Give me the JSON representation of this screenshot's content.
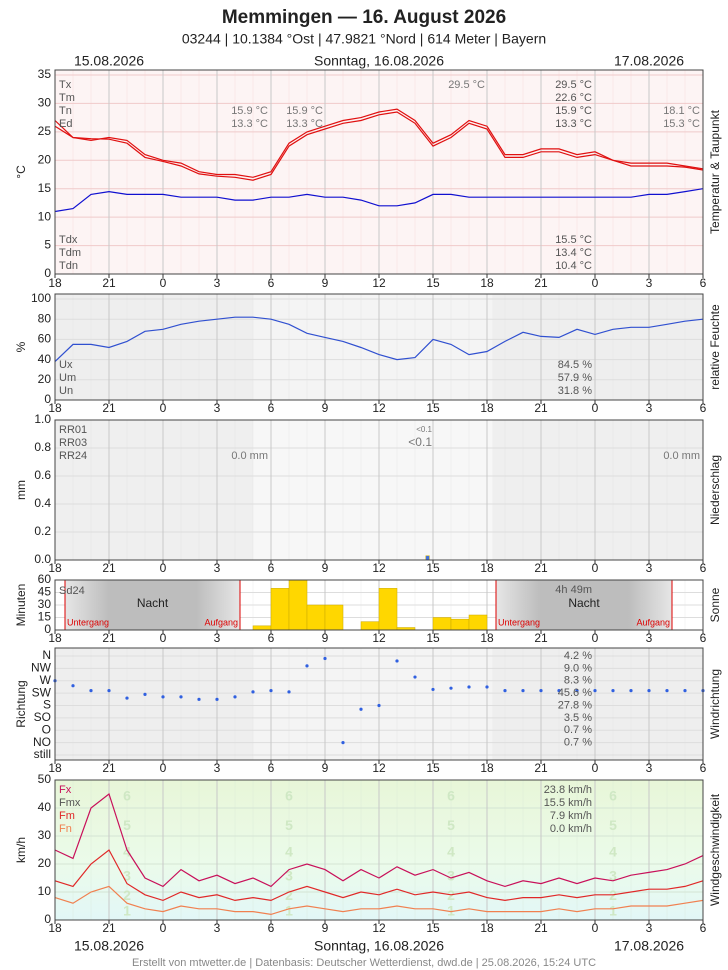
{
  "header": {
    "title": "Memmingen  —  16. August 2026",
    "subtitle": "03244  |  10.1384 °Ost  |  47.9821 °Nord  |  614 Meter  |  Bayern",
    "dates": [
      "15.08.2026",
      "Sonntag, 16.08.2026",
      "17.08.2026"
    ],
    "footer": "Erstellt von mtwetter.de | Datenbasis: Deutscher Wetterdienst, dwd.de | 25.08.2026, 15:24 UTC"
  },
  "chart_data": [
    {
      "type": "line",
      "y_label": "°C",
      "side_label": "Temperatur & Taupunkt",
      "xlim": [
        0,
        36
      ],
      "ylim": [
        0,
        35
      ],
      "yticks": [
        0,
        5,
        10,
        15,
        20,
        25,
        30,
        35
      ],
      "xticks": [
        {
          "value": 0,
          "label": "18"
        },
        {
          "value": 3,
          "label": "21"
        },
        {
          "value": 6,
          "label": "0"
        },
        {
          "value": 9,
          "label": "3"
        },
        {
          "value": 12,
          "label": "6"
        },
        {
          "value": 15,
          "label": "9"
        },
        {
          "value": 18,
          "label": "12"
        },
        {
          "value": 21,
          "label": "15"
        },
        {
          "value": 24,
          "label": "18"
        },
        {
          "value": 27,
          "label": "21"
        },
        {
          "value": 30,
          "label": "0"
        },
        {
          "value": 33,
          "label": "3"
        },
        {
          "value": 36,
          "label": "6"
        }
      ],
      "x": [
        0,
        1,
        2,
        3,
        4,
        5,
        6,
        7,
        8,
        9,
        10,
        11,
        12,
        13,
        14,
        15,
        16,
        17,
        18,
        19,
        20,
        21,
        22,
        23,
        24,
        25,
        26,
        27,
        28,
        29,
        30,
        31,
        32,
        33,
        34,
        35,
        36
      ],
      "series": [
        {
          "color": "#e01010",
          "values": [
            26,
            24,
            23.5,
            24,
            23.5,
            21,
            20,
            19.5,
            18,
            17.5,
            17.5,
            17,
            18,
            23,
            25,
            26,
            27,
            27.5,
            28.5,
            29,
            27,
            23,
            24.5,
            27,
            26,
            21,
            21,
            22,
            22,
            21,
            21.5,
            20,
            19.5,
            19.5,
            19.5,
            19,
            18.5
          ]
        },
        {
          "color": "#e01010",
          "values": [
            27,
            24,
            23.8,
            23.7,
            23,
            20.5,
            19.8,
            19,
            17.6,
            17.2,
            17,
            16.5,
            17.5,
            22.5,
            24.5,
            25.5,
            26.5,
            27,
            28,
            28.5,
            26.5,
            22.5,
            24,
            26.5,
            25.5,
            20.5,
            20.5,
            21.5,
            21.5,
            20.5,
            21,
            20,
            19,
            19,
            19,
            18.8,
            18.3
          ]
        },
        {
          "color": "#1010d0",
          "values": [
            11,
            11.5,
            14,
            14.5,
            14,
            14,
            14,
            13.5,
            13.5,
            13.5,
            13,
            13,
            13.5,
            13.5,
            14,
            13.5,
            13.5,
            13,
            12,
            12,
            12.5,
            14,
            14,
            13.5,
            13.5,
            13.5,
            13.5,
            13.5,
            13.5,
            13.5,
            13.5,
            13.5,
            13.5,
            14,
            14,
            14.5,
            15
          ]
        }
      ],
      "stats": [
        {
          "label": "Tx",
          "value": "29.5 °C"
        },
        {
          "label": "Tm",
          "value": "22.6 °C"
        },
        {
          "label": "Tn",
          "value": "15.9 °C"
        },
        {
          "label": "Ed",
          "value": "13.3 °C"
        }
      ],
      "dewpoint_stats": [
        {
          "label": "Tdx",
          "value": "15.5 °C"
        },
        {
          "label": "Tdm",
          "value": "13.4 °C"
        },
        {
          "label": "Tdn",
          "value": "10.4 °C"
        }
      ],
      "annotations": [
        "29.5 °C",
        "15.9 °C",
        "13.3 °C",
        "15.9 °C",
        "13.3 °C",
        "18.1 °C",
        "15.3 °C"
      ]
    },
    {
      "type": "line",
      "y_label": "%",
      "side_label": "relative Feuchte",
      "xlim": [
        0,
        36
      ],
      "ylim": [
        0,
        100
      ],
      "yticks": [
        0,
        20,
        40,
        60,
        80,
        100
      ],
      "xticks": [
        {
          "value": 0,
          "label": "18"
        },
        {
          "value": 3,
          "label": "21"
        },
        {
          "value": 6,
          "label": "0"
        },
        {
          "value": 9,
          "label": "3"
        },
        {
          "value": 12,
          "label": "6"
        },
        {
          "value": 15,
          "label": "9"
        },
        {
          "value": 18,
          "label": "12"
        },
        {
          "value": 21,
          "label": "15"
        },
        {
          "value": 24,
          "label": "18"
        },
        {
          "value": 27,
          "label": "21"
        },
        {
          "value": 30,
          "label": "0"
        },
        {
          "value": 33,
          "label": "3"
        },
        {
          "value": 36,
          "label": "6"
        }
      ],
      "x": [
        0,
        1,
        2,
        3,
        4,
        5,
        6,
        7,
        8,
        9,
        10,
        11,
        12,
        13,
        14,
        15,
        16,
        17,
        18,
        19,
        20,
        21,
        22,
        23,
        24,
        25,
        26,
        27,
        28,
        29,
        30,
        31,
        32,
        33,
        34,
        35,
        36
      ],
      "series": [
        {
          "color": "#3050d0",
          "values": [
            38,
            55,
            55,
            52,
            58,
            68,
            70,
            75,
            78,
            80,
            82,
            82,
            80,
            75,
            66,
            62,
            58,
            52,
            45,
            40,
            42,
            60,
            55,
            45,
            48,
            58,
            67,
            63,
            62,
            70,
            65,
            70,
            72,
            72,
            75,
            78,
            80
          ]
        }
      ],
      "stats": [
        {
          "label": "Ux",
          "value": "84.5 %"
        },
        {
          "label": "Um",
          "value": "57.9 %"
        },
        {
          "label": "Un",
          "value": "31.8 %"
        }
      ]
    },
    {
      "type": "bar",
      "y_label": "mm",
      "side_label": "Niederschlag",
      "xlim": [
        0,
        36
      ],
      "ylim": [
        0,
        1
      ],
      "yticks": [
        {
          "value": 0,
          "label": "0.0"
        },
        {
          "value": 0.2,
          "label": "0.2"
        },
        {
          "value": 0.4,
          "label": "0.4"
        },
        {
          "value": 0.6,
          "label": "0.6"
        },
        {
          "value": 0.8,
          "label": "0.8"
        },
        {
          "value": 1,
          "label": "1.0"
        }
      ],
      "xticks": [
        {
          "value": 0,
          "label": "18"
        },
        {
          "value": 3,
          "label": "21"
        },
        {
          "value": 6,
          "label": "0"
        },
        {
          "value": 9,
          "label": "3"
        },
        {
          "value": 12,
          "label": "6"
        },
        {
          "value": 15,
          "label": "9"
        },
        {
          "value": 18,
          "label": "12"
        },
        {
          "value": 21,
          "label": "15"
        },
        {
          "value": 24,
          "label": "18"
        },
        {
          "value": 27,
          "label": "21"
        },
        {
          "value": 30,
          "label": "0"
        },
        {
          "value": 33,
          "label": "3"
        },
        {
          "value": 36,
          "label": "6"
        }
      ],
      "x": [
        20.6
      ],
      "bar_width": 0.2,
      "color": "#4070e0",
      "values": [
        0.03
      ],
      "stats": [
        {
          "label": "RR01"
        },
        {
          "label": "RR03"
        },
        {
          "label": "RR24"
        }
      ],
      "annotations": [
        "<0.1",
        "<0.1",
        "0.0 mm",
        "0.0 mm"
      ]
    },
    {
      "type": "bar",
      "y_label": "Minuten",
      "side_label": "Sonne",
      "xlim": [
        0,
        36
      ],
      "ylim": [
        0,
        60
      ],
      "yticks": [
        0,
        15,
        30,
        45,
        60
      ],
      "xticks": [
        {
          "value": 0,
          "label": "18"
        },
        {
          "value": 3,
          "label": "21"
        },
        {
          "value": 6,
          "label": "0"
        },
        {
          "value": 9,
          "label": "3"
        },
        {
          "value": 12,
          "label": "6"
        },
        {
          "value": 15,
          "label": "9"
        },
        {
          "value": 18,
          "label": "12"
        },
        {
          "value": 21,
          "label": "15"
        },
        {
          "value": 24,
          "label": "18"
        },
        {
          "value": 27,
          "label": "21"
        },
        {
          "value": 30,
          "label": "0"
        },
        {
          "value": 33,
          "label": "3"
        },
        {
          "value": 36,
          "label": "6"
        }
      ],
      "x": [
        11,
        12,
        13,
        14,
        15,
        16,
        17,
        18,
        19,
        20,
        21,
        22,
        23
      ],
      "bar_width": 1,
      "color": "#ffd700",
      "values": [
        5,
        50,
        60,
        30,
        30,
        0,
        10,
        50,
        3,
        0,
        15,
        13,
        18
      ],
      "sd24": {
        "label": "Sd24",
        "value": "4h 49m"
      },
      "night": {
        "label": "Nacht",
        "sunset": "Untergang",
        "sunrise": "Aufgang"
      }
    },
    {
      "type": "scatter",
      "y_label": "Richtung",
      "side_label": "Windrichtung",
      "xlim": [
        0,
        36
      ],
      "ylim": [
        0,
        8
      ],
      "yticks": [
        {
          "value": 8,
          "label": "N"
        },
        {
          "value": 7,
          "label": "NW"
        },
        {
          "value": 6,
          "label": "W"
        },
        {
          "value": 5,
          "label": "SW"
        },
        {
          "value": 4,
          "label": "S"
        },
        {
          "value": 3,
          "label": "SO"
        },
        {
          "value": 2,
          "label": "O"
        },
        {
          "value": 1,
          "label": "NO"
        },
        {
          "value": 0,
          "label": "still"
        }
      ],
      "xticks": [
        {
          "value": 0,
          "label": "18"
        },
        {
          "value": 3,
          "label": "21"
        },
        {
          "value": 6,
          "label": "0"
        },
        {
          "value": 9,
          "label": "3"
        },
        {
          "value": 12,
          "label": "6"
        },
        {
          "value": 15,
          "label": "9"
        },
        {
          "value": 18,
          "label": "12"
        },
        {
          "value": 21,
          "label": "15"
        },
        {
          "value": 24,
          "label": "18"
        },
        {
          "value": 27,
          "label": "21"
        },
        {
          "value": 30,
          "label": "0"
        },
        {
          "value": 33,
          "label": "3"
        },
        {
          "value": 36,
          "label": "6"
        }
      ],
      "x": [
        0,
        1,
        2,
        3,
        4,
        5,
        6,
        7,
        8,
        9,
        10,
        11,
        12,
        13,
        14,
        15,
        16,
        17,
        18,
        19,
        20,
        21,
        22,
        23,
        24,
        25,
        26,
        27,
        28,
        29,
        30,
        31,
        32,
        33,
        34,
        35,
        36
      ],
      "color": "#3060e0",
      "values": [
        6,
        5.6,
        5.2,
        5.2,
        4.6,
        4.9,
        4.7,
        4.7,
        4.5,
        4.5,
        4.7,
        5.1,
        5.2,
        5.1,
        7.2,
        7.8,
        1,
        3.7,
        4,
        7.6,
        6.3,
        5.3,
        5.4,
        5.5,
        5.5,
        5.2,
        5.2,
        5.2,
        5.2,
        5.2,
        5.2,
        5.2,
        5.2,
        5.2,
        5.2,
        5.2,
        5.2
      ],
      "stats": [
        "4.2 %",
        "9.0 %",
        "8.3 %",
        "45.6 %",
        "27.8 %",
        "3.5 %",
        "0.7 %",
        "0.7 %"
      ]
    },
    {
      "type": "line",
      "y_label": "km/h",
      "side_label": "Windgeschwindigkeit",
      "xlim": [
        0,
        36
      ],
      "ylim": [
        0,
        50
      ],
      "yticks": [
        0,
        10,
        20,
        30,
        40,
        50
      ],
      "xticks": [
        {
          "value": 0,
          "label": "18"
        },
        {
          "value": 3,
          "label": "21"
        },
        {
          "value": 6,
          "label": "0"
        },
        {
          "value": 9,
          "label": "3"
        },
        {
          "value": 12,
          "label": "6"
        },
        {
          "value": 15,
          "label": "9"
        },
        {
          "value": 18,
          "label": "12"
        },
        {
          "value": 21,
          "label": "15"
        },
        {
          "value": 24,
          "label": "18"
        },
        {
          "value": 27,
          "label": "21"
        },
        {
          "value": 30,
          "label": "0"
        },
        {
          "value": 33,
          "label": "3"
        },
        {
          "value": 36,
          "label": "6"
        }
      ],
      "x": [
        0,
        1,
        2,
        3,
        4,
        5,
        6,
        7,
        8,
        9,
        10,
        11,
        12,
        13,
        14,
        15,
        16,
        17,
        18,
        19,
        20,
        21,
        22,
        23,
        24,
        25,
        26,
        27,
        28,
        29,
        30,
        31,
        32,
        33,
        34,
        35,
        36
      ],
      "beaufort": [
        1,
        2,
        3,
        4,
        5,
        6
      ],
      "series": [
        {
          "color": "#c8105a",
          "values": [
            25,
            22,
            40,
            45,
            25,
            15,
            12,
            18,
            14,
            16,
            13,
            15,
            12,
            18,
            20,
            18,
            14,
            18,
            15,
            19,
            16,
            18,
            15,
            17,
            14,
            12,
            14,
            13,
            15,
            13,
            15,
            14,
            16,
            17,
            18,
            20,
            23
          ]
        },
        {
          "color": "#e02828",
          "values": [
            14,
            12,
            20,
            25,
            13,
            9,
            7,
            10,
            8,
            9,
            7,
            8,
            7,
            10,
            12,
            10,
            8,
            10,
            9,
            11,
            9,
            10,
            9,
            10,
            8,
            7,
            8,
            8,
            9,
            8,
            9,
            9,
            10,
            11,
            11,
            12,
            14
          ]
        },
        {
          "color": "#f08050",
          "values": [
            8,
            6,
            10,
            12,
            6,
            4,
            3,
            5,
            4,
            4,
            3,
            3,
            2,
            4,
            5,
            4,
            3,
            4,
            4,
            5,
            4,
            4,
            3,
            4,
            3,
            3,
            3,
            3,
            4,
            3,
            4,
            4,
            5,
            5,
            5,
            6,
            7
          ]
        }
      ],
      "stats": [
        {
          "label": "Fx",
          "value": "23.8 km/h",
          "color": "#c8105a"
        },
        {
          "label": "Fmx",
          "value": "15.5 km/h",
          "color": "#555555"
        },
        {
          "label": "Fm",
          "value": "7.9 km/h",
          "color": "#e02828"
        },
        {
          "label": "Fn",
          "value": "0.0 km/h",
          "color": "#f08050"
        }
      ]
    }
  ]
}
